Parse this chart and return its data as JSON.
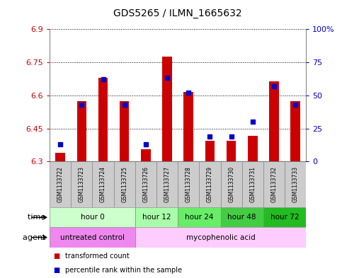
{
  "title": "GDS5265 / ILMN_1665632",
  "samples": [
    "GSM1133722",
    "GSM1133723",
    "GSM1133724",
    "GSM1133725",
    "GSM1133726",
    "GSM1133727",
    "GSM1133728",
    "GSM1133729",
    "GSM1133730",
    "GSM1133731",
    "GSM1133732",
    "GSM1133733"
  ],
  "transformed_counts": [
    6.34,
    6.575,
    6.68,
    6.575,
    6.355,
    6.775,
    6.615,
    6.395,
    6.395,
    6.415,
    6.665,
    6.575
  ],
  "percentile_ranks": [
    13,
    43,
    62,
    43,
    13,
    63,
    52,
    19,
    19,
    30,
    57,
    43
  ],
  "ymin": 6.3,
  "ymax": 6.9,
  "yticks": [
    6.3,
    6.45,
    6.6,
    6.75,
    6.9
  ],
  "ytick_labels": [
    "6.3",
    "6.45",
    "6.6",
    "6.75",
    "6.9"
  ],
  "y2min": 0,
  "y2max": 100,
  "y2ticks": [
    0,
    25,
    50,
    75,
    100
  ],
  "y2tick_labels": [
    "0",
    "25",
    "50",
    "75",
    "100%"
  ],
  "bar_color": "#cc0000",
  "percentile_color": "#0000cc",
  "time_groups": [
    {
      "label": "hour 0",
      "start": 0,
      "end": 3,
      "color": "#ccffcc"
    },
    {
      "label": "hour 12",
      "start": 4,
      "end": 5,
      "color": "#aaffaa"
    },
    {
      "label": "hour 24",
      "start": 6,
      "end": 7,
      "color": "#66ee66"
    },
    {
      "label": "hour 48",
      "start": 8,
      "end": 9,
      "color": "#44cc44"
    },
    {
      "label": "hour 72",
      "start": 10,
      "end": 11,
      "color": "#22bb22"
    }
  ],
  "agent_groups": [
    {
      "label": "untreated control",
      "start": 0,
      "end": 3,
      "color": "#ee88ee"
    },
    {
      "label": "mycophenolic acid",
      "start": 4,
      "end": 11,
      "color": "#ffccff"
    }
  ],
  "legend_items": [
    {
      "label": "transformed count",
      "color": "#cc0000"
    },
    {
      "label": "percentile rank within the sample",
      "color": "#0000cc"
    }
  ],
  "row_label_time": "time",
  "row_label_agent": "agent",
  "axis_color_left": "#cc0000",
  "axis_color_right": "#0000cc",
  "bg_color": "#ffffff",
  "sample_bg": "#cccccc",
  "border_color": "#888888"
}
